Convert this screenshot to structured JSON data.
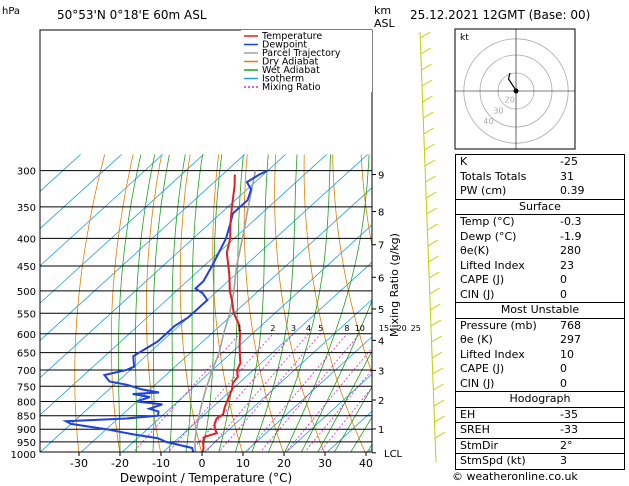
{
  "header": {
    "location": "50°53'N  0°18'E  60m  ASL",
    "datetime": "25.12.2021  12GMT  (Base: 00)",
    "hpa_label": "hPa",
    "km_label": "km",
    "asl_label": "ASL"
  },
  "chart_data": {
    "type": "line",
    "xlabel": "Dewpoint / Temperature (°C)",
    "ylabel_right": "Mixing Ratio (g/kg)",
    "x_ticks": [
      -30,
      -20,
      -10,
      0,
      10,
      20,
      30,
      40
    ],
    "pressure_levels": [
      300,
      350,
      400,
      450,
      500,
      550,
      600,
      650,
      700,
      750,
      800,
      850,
      900,
      950,
      1000
    ],
    "km_ticks": [
      {
        "label": "9",
        "p": 305
      },
      {
        "label": "8",
        "p": 357
      },
      {
        "label": "7",
        "p": 411
      },
      {
        "label": "6",
        "p": 472
      },
      {
        "label": "5",
        "p": 540
      },
      {
        "label": "4",
        "p": 617
      },
      {
        "label": "3",
        "p": 701
      },
      {
        "label": "2",
        "p": 795
      },
      {
        "label": "1",
        "p": 899
      },
      {
        "label": "LCL",
        "p": 995
      }
    ],
    "mixing_ratio_labels": [
      "1",
      "2",
      "3",
      "4",
      "5",
      "8",
      "10",
      "15",
      "20",
      "25"
    ],
    "legend": [
      {
        "name": "Temperature",
        "color": "#e02020"
      },
      {
        "name": "Dewpoint",
        "color": "#2040e0"
      },
      {
        "name": "Parcel Trajectory",
        "color": "#a0a0a0"
      },
      {
        "name": "Dry Adiabat",
        "color": "#e08000"
      },
      {
        "name": "Wet Adiabat",
        "color": "#20a020"
      },
      {
        "name": "Isotherm",
        "color": "#20a0e0"
      },
      {
        "name": "Mixing Ratio",
        "color": "#e020e0"
      }
    ],
    "series": [
      {
        "name": "Temperature",
        "points": [
          [
            -0.3,
            1008
          ],
          [
            0,
            1000
          ],
          [
            -1.2,
            975
          ],
          [
            -3,
            950
          ],
          [
            -4,
            930
          ],
          [
            -2,
            915
          ],
          [
            -3.5,
            900
          ],
          [
            -5,
            880
          ],
          [
            -6,
            860
          ],
          [
            -5.5,
            845
          ],
          [
            -7,
            820
          ],
          [
            -8,
            800
          ],
          [
            -9,
            780
          ],
          [
            -10,
            760
          ],
          [
            -11.5,
            740
          ],
          [
            -12,
            720
          ],
          [
            -14,
            700
          ],
          [
            -15,
            680
          ],
          [
            -17,
            660
          ],
          [
            -20,
            630
          ],
          [
            -23,
            600
          ],
          [
            -26,
            575
          ],
          [
            -30,
            550
          ],
          [
            -34,
            520
          ],
          [
            -37,
            500
          ],
          [
            -41,
            470
          ],
          [
            -44,
            450
          ],
          [
            -48,
            425
          ],
          [
            -51,
            400
          ],
          [
            -55,
            375
          ],
          [
            -59,
            350
          ],
          [
            -64,
            320
          ],
          [
            -67,
            305
          ]
        ]
      },
      {
        "name": "Dewpoint",
        "points": [
          [
            -1.9,
            1008
          ],
          [
            -2,
            1000
          ],
          [
            -4,
            975
          ],
          [
            -12,
            950
          ],
          [
            -15,
            935
          ],
          [
            -22,
            920
          ],
          [
            -30,
            900
          ],
          [
            -40,
            880
          ],
          [
            -42,
            870
          ],
          [
            -28,
            860
          ],
          [
            -21,
            850
          ],
          [
            -22,
            835
          ],
          [
            -25,
            825
          ],
          [
            -23,
            810
          ],
          [
            -30,
            800
          ],
          [
            -28,
            785
          ],
          [
            -33,
            775
          ],
          [
            -27,
            770
          ],
          [
            -32,
            760
          ],
          [
            -37,
            745
          ],
          [
            -42,
            735
          ],
          [
            -45,
            715
          ],
          [
            -41,
            700
          ],
          [
            -40,
            690
          ],
          [
            -42,
            670
          ],
          [
            -43,
            660
          ],
          [
            -42,
            640
          ],
          [
            -41,
            620
          ],
          [
            -41,
            600
          ],
          [
            -41,
            580
          ],
          [
            -40,
            560
          ],
          [
            -40,
            540
          ],
          [
            -40,
            520
          ],
          [
            -43,
            505
          ],
          [
            -46,
            495
          ],
          [
            -46,
            480
          ],
          [
            -48,
            450
          ],
          [
            -52,
            400
          ],
          [
            -55,
            375
          ],
          [
            -57,
            360
          ],
          [
            -57,
            340
          ],
          [
            -59,
            325
          ],
          [
            -62,
            315
          ],
          [
            -61,
            305
          ],
          [
            -60,
            300
          ]
        ]
      },
      {
        "name": "Parcel Trajectory",
        "points": [
          [
            -0.3,
            1008
          ],
          [
            -1.9,
            995
          ],
          [
            -5,
            950
          ],
          [
            -8,
            900
          ],
          [
            -11,
            850
          ],
          [
            -14,
            800
          ],
          [
            -17,
            750
          ],
          [
            -20,
            700
          ],
          [
            -23,
            650
          ],
          [
            -27,
            600
          ],
          [
            -31,
            550
          ],
          [
            -36,
            500
          ],
          [
            -42,
            450
          ],
          [
            -48,
            400
          ],
          [
            -55,
            350
          ],
          [
            -63,
            300
          ]
        ]
      }
    ],
    "hodograph": {
      "label": "kt",
      "ring_labels": [
        "20",
        "30",
        "40"
      ],
      "trace": [
        [
          0,
          0
        ],
        [
          -1,
          2
        ],
        [
          -3,
          5
        ],
        [
          -5,
          8
        ],
        [
          -4,
          12
        ]
      ]
    }
  },
  "indices": {
    "basic": [
      {
        "label": "K",
        "value": "-25"
      },
      {
        "label": "Totals Totals",
        "value": "31"
      },
      {
        "label": "PW (cm)",
        "value": "0.39"
      }
    ],
    "surface_title": "Surface",
    "surface": [
      {
        "label": "Temp (°C)",
        "value": "-0.3"
      },
      {
        "label": "Dewp (°C)",
        "value": "-1.9"
      },
      {
        "label": "θe(K)",
        "value": "280"
      },
      {
        "label": "Lifted Index",
        "value": "23"
      },
      {
        "label": "CAPE (J)",
        "value": "0"
      },
      {
        "label": "CIN (J)",
        "value": "0"
      }
    ],
    "unstable_title": "Most Unstable",
    "unstable": [
      {
        "label": "Pressure (mb)",
        "value": "768"
      },
      {
        "label": "θe (K)",
        "value": "297"
      },
      {
        "label": "Lifted Index",
        "value": "10"
      },
      {
        "label": "CAPE (J)",
        "value": "0"
      },
      {
        "label": "CIN (J)",
        "value": "0"
      }
    ],
    "hodo_title": "Hodograph",
    "hodo": [
      {
        "label": "EH",
        "value": "-35"
      },
      {
        "label": "SREH",
        "value": "-33"
      },
      {
        "label": "StmDir",
        "value": "2°"
      },
      {
        "label": "StmSpd (kt)",
        "value": "3"
      }
    ]
  },
  "footer": "© weatheronline.co.uk",
  "colors": {
    "temperature": "#e02020",
    "dewpoint": "#2040e0",
    "parcel": "#a0a0a0",
    "dry_adiabat": "#e08000",
    "wet_adiabat": "#20a020",
    "isotherm": "#20a0e0",
    "mixing_ratio": "#e020e0",
    "wind": "#c0d000"
  }
}
